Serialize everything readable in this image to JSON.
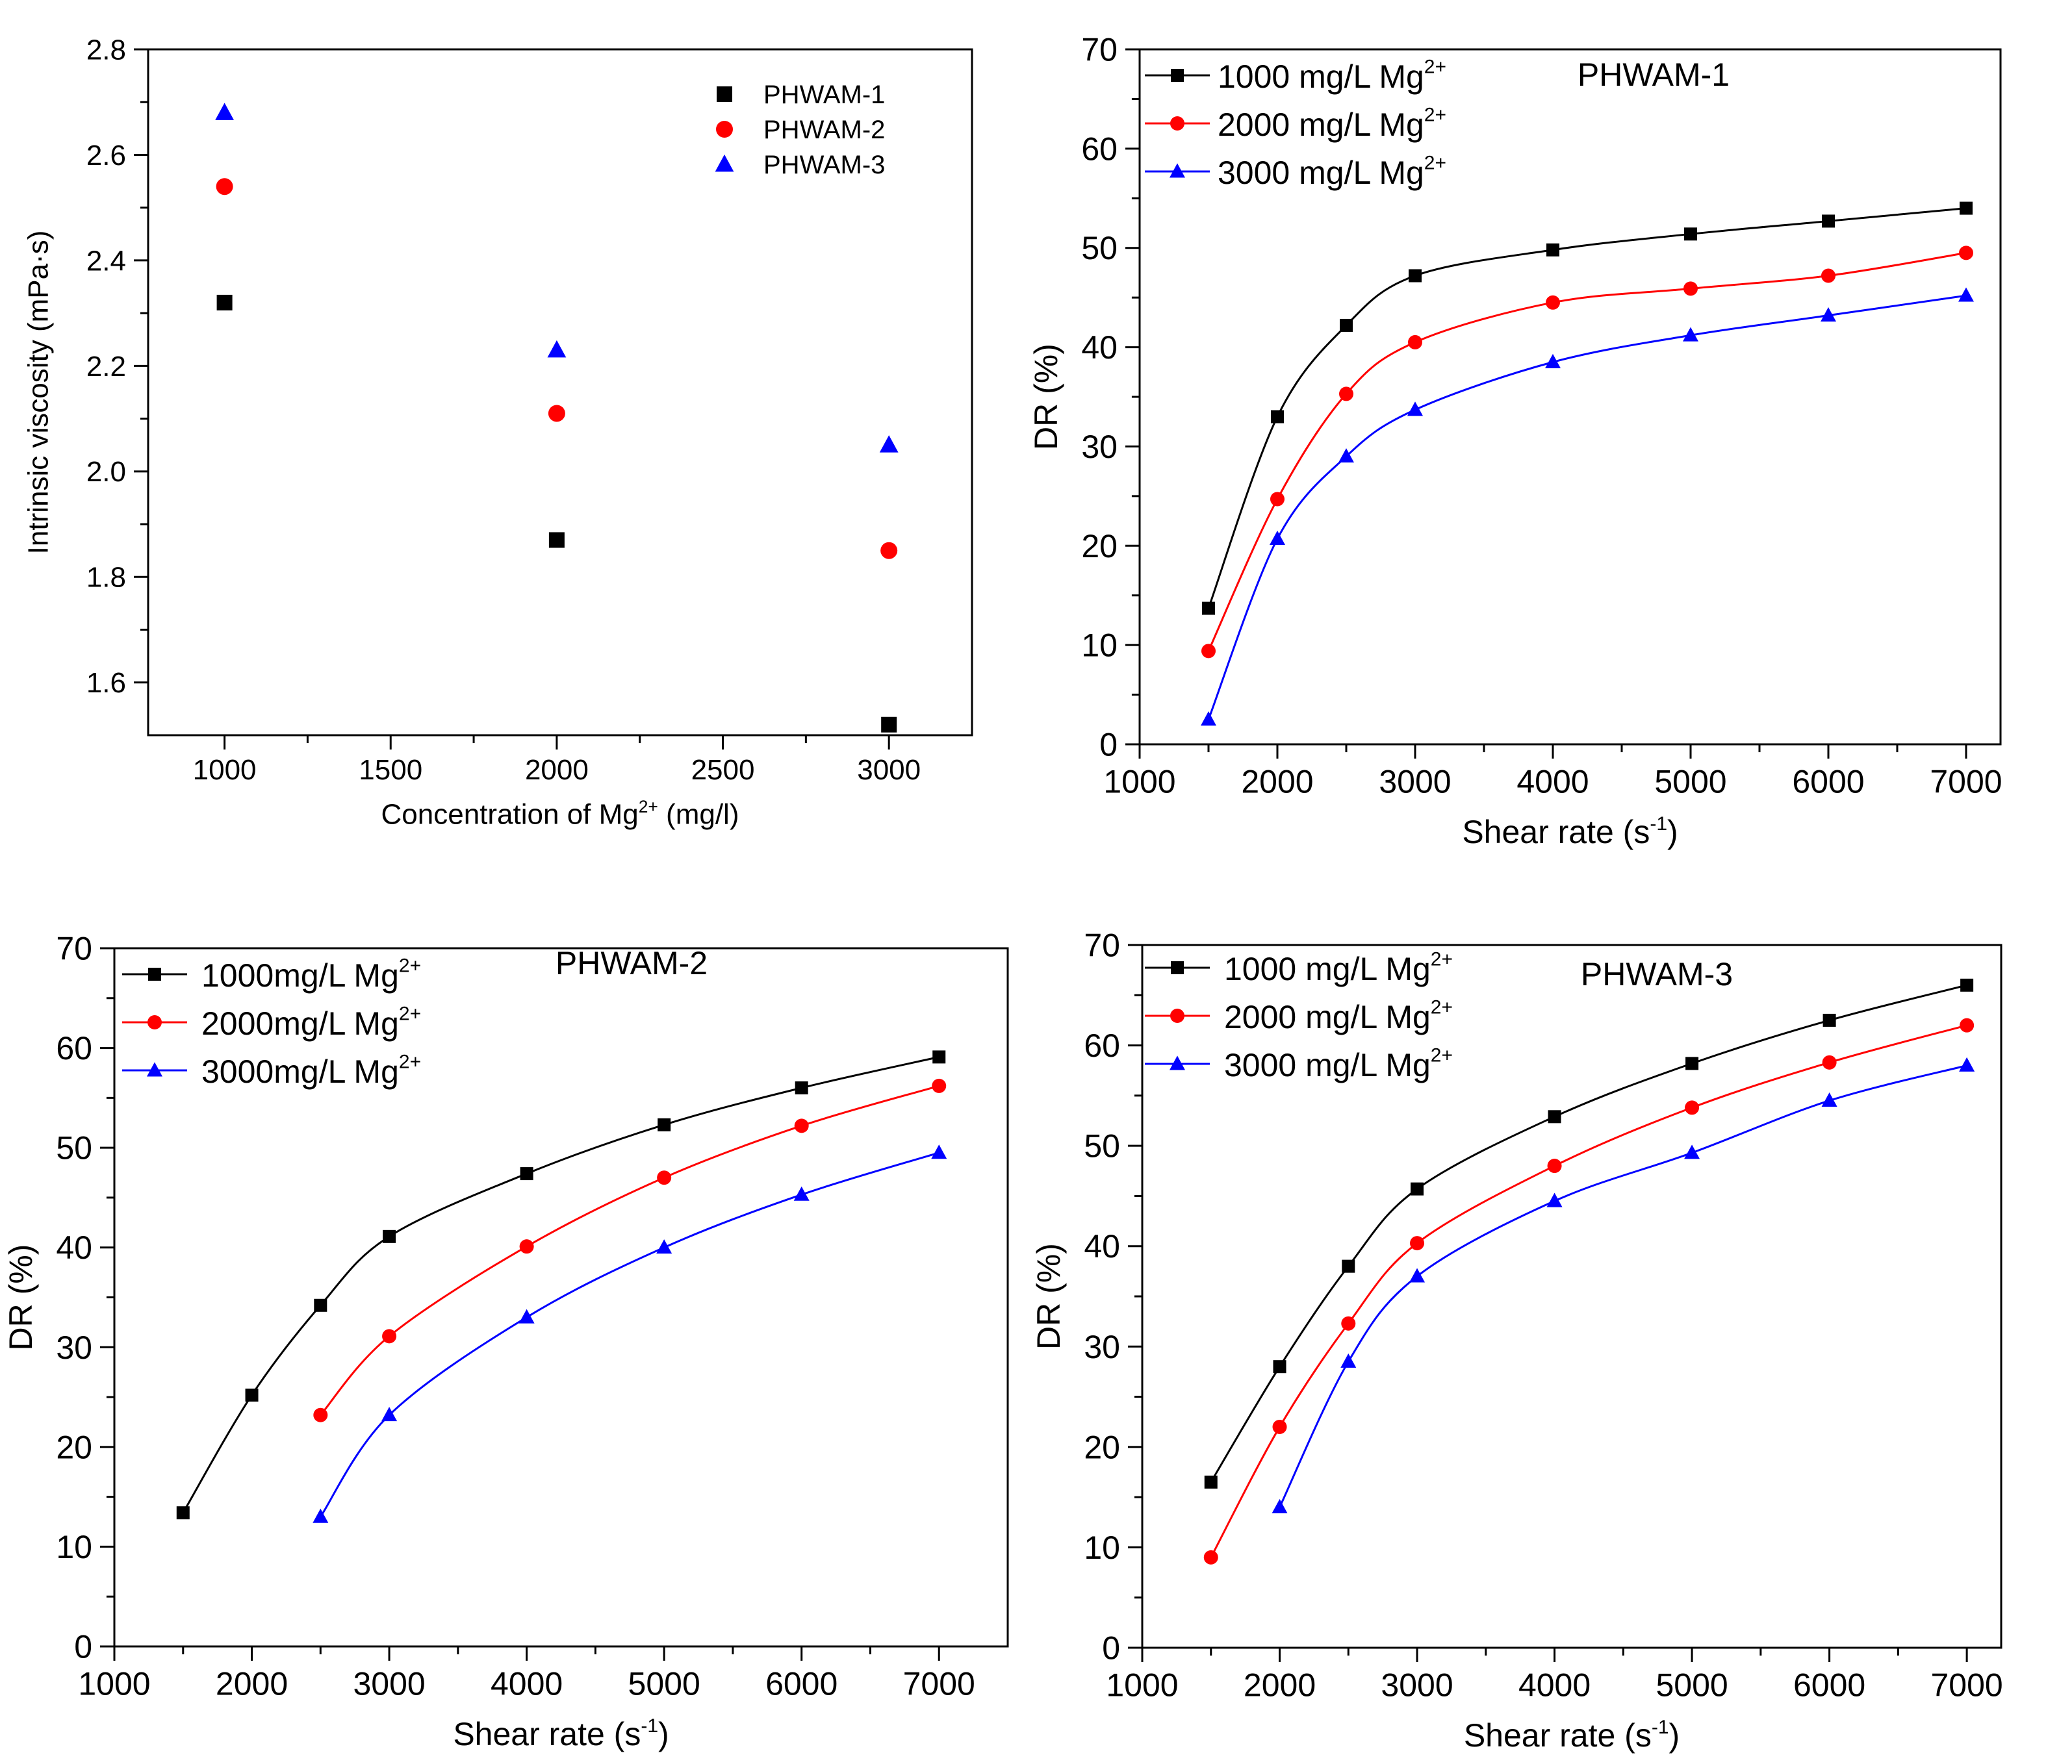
{
  "chart_data": [
    {
      "type": "scatter",
      "xlabel": "Concentration of Mg",
      "xlabel_sup": "2+",
      "xlabel_tail": " (mg/l)",
      "ylabel": "Intrinsic viscosity (mPa·s)",
      "xlim": [
        770,
        3250
      ],
      "ylim": [
        1.5,
        2.8
      ],
      "xticks": [
        1000,
        1500,
        2000,
        2500,
        3000
      ],
      "xtick_labels": [
        "1000",
        "1500",
        "2000",
        "2500",
        "3000"
      ],
      "yticks": [
        1.6,
        1.8,
        2.0,
        2.2,
        2.4,
        2.6,
        2.8
      ],
      "ytick_labels": [
        "1.6",
        "1.8",
        "2.0",
        "2.2",
        "2.4",
        "2.6",
        "2.8"
      ],
      "legend_position": "top-right",
      "series": [
        {
          "name": "PHWAM-1",
          "color": "#000000",
          "marker": "square",
          "x": [
            1000,
            2000,
            3000
          ],
          "y": [
            2.32,
            1.87,
            1.52
          ]
        },
        {
          "name": "PHWAM-2",
          "color": "#ff0000",
          "marker": "circle",
          "x": [
            1000,
            2000,
            3000
          ],
          "y": [
            2.54,
            2.11,
            1.85
          ]
        },
        {
          "name": "PHWAM-3",
          "color": "#0000ff",
          "marker": "triangle",
          "x": [
            1000,
            2000,
            3000
          ],
          "y": [
            2.68,
            2.23,
            2.05
          ]
        }
      ]
    },
    {
      "type": "line",
      "title": "PHWAM-1",
      "xlabel": "Shear rate (s",
      "xlabel_sup": "-1",
      "xlabel_tail": ")",
      "ylabel": "DR (%)",
      "xlim": [
        1000,
        7250
      ],
      "ylim": [
        0,
        70
      ],
      "xticks": [
        1000,
        2000,
        3000,
        4000,
        5000,
        6000,
        7000
      ],
      "xtick_labels": [
        "1000",
        "2000",
        "3000",
        "4000",
        "5000",
        "6000",
        "7000"
      ],
      "yticks": [
        0,
        10,
        20,
        30,
        40,
        50,
        60,
        70
      ],
      "ytick_labels": [
        "0",
        "10",
        "20",
        "30",
        "40",
        "50",
        "60",
        "70"
      ],
      "legend_position": "top-left",
      "series": [
        {
          "name": "1000 mg/L Mg",
          "name_sup": "2+",
          "color": "#000000",
          "marker": "square",
          "x": [
            1500,
            2000,
            2500,
            3000,
            4000,
            5000,
            6000,
            7000
          ],
          "y": [
            13.7,
            33.0,
            42.2,
            47.2,
            49.8,
            51.4,
            52.7,
            54.0
          ]
        },
        {
          "name": "2000 mg/L Mg",
          "name_sup": "2+",
          "color": "#ff0000",
          "marker": "circle",
          "x": [
            1500,
            2000,
            2500,
            3000,
            4000,
            5000,
            6000,
            7000
          ],
          "y": [
            9.4,
            24.7,
            35.3,
            40.5,
            44.5,
            45.9,
            47.2,
            49.5
          ]
        },
        {
          "name": "3000 mg/L Mg",
          "name_sup": "2+",
          "color": "#0000ff",
          "marker": "triangle",
          "x": [
            1500,
            2000,
            2500,
            3000,
            4000,
            5000,
            6000,
            7000
          ],
          "y": [
            2.5,
            20.7,
            29.0,
            33.7,
            38.5,
            41.2,
            43.2,
            45.2
          ]
        }
      ]
    },
    {
      "type": "line",
      "title": "PHWAM-2",
      "xlabel": "Shear rate (s",
      "xlabel_sup": "-1",
      "xlabel_tail": ")",
      "ylabel": "DR (%)",
      "xlim": [
        1000,
        7500
      ],
      "ylim": [
        0,
        70
      ],
      "xticks": [
        1000,
        2000,
        3000,
        4000,
        5000,
        6000,
        7000
      ],
      "xtick_labels": [
        "1000",
        "2000",
        "3000",
        "4000",
        "5000",
        "6000",
        "7000"
      ],
      "yticks": [
        0,
        10,
        20,
        30,
        40,
        50,
        60,
        70
      ],
      "ytick_labels": [
        "0",
        "10",
        "20",
        "30",
        "40",
        "50",
        "60",
        "70"
      ],
      "legend_position": "top-left",
      "series": [
        {
          "name": "1000mg/L Mg",
          "name_sup": "2+",
          "color": "#000000",
          "marker": "square",
          "x": [
            1500,
            2000,
            2500,
            3000,
            4000,
            5000,
            6000,
            7000
          ],
          "y": [
            13.4,
            25.2,
            34.2,
            41.1,
            47.4,
            52.3,
            56.0,
            59.1
          ]
        },
        {
          "name": "2000mg/L Mg",
          "name_sup": "2+",
          "color": "#ff0000",
          "marker": "circle",
          "x": [
            2500,
            3000,
            4000,
            5000,
            6000,
            7000
          ],
          "y": [
            23.2,
            31.1,
            40.1,
            47.0,
            52.2,
            56.2
          ]
        },
        {
          "name": "3000mg/L Mg",
          "name_sup": "2+",
          "color": "#0000ff",
          "marker": "triangle",
          "x": [
            2500,
            3000,
            4000,
            5000,
            6000,
            7000
          ],
          "y": [
            13.0,
            23.2,
            33.0,
            40.0,
            45.3,
            49.5
          ]
        }
      ]
    },
    {
      "type": "line",
      "title": "PHWAM-3",
      "xlabel": "Shear rate (s",
      "xlabel_sup": "-1",
      "xlabel_tail": ")",
      "ylabel": "DR (%)",
      "xlim": [
        1000,
        7250
      ],
      "ylim": [
        0,
        70
      ],
      "xticks": [
        1000,
        2000,
        3000,
        4000,
        5000,
        6000,
        7000
      ],
      "xtick_labels": [
        "1000",
        "2000",
        "3000",
        "4000",
        "5000",
        "6000",
        "7000"
      ],
      "yticks": [
        0,
        10,
        20,
        30,
        40,
        50,
        60,
        70
      ],
      "ytick_labels": [
        "0",
        "10",
        "20",
        "30",
        "40",
        "50",
        "60",
        "70"
      ],
      "legend_position": "top-left",
      "series": [
        {
          "name": "1000 mg/L Mg",
          "name_sup": "2+",
          "color": "#000000",
          "marker": "square",
          "x": [
            1500,
            2000,
            2500,
            3000,
            4000,
            5000,
            6000,
            7000
          ],
          "y": [
            16.5,
            28.0,
            38.0,
            45.7,
            52.9,
            58.2,
            62.5,
            66.0
          ]
        },
        {
          "name": "2000 mg/L Mg",
          "name_sup": "2+",
          "color": "#ff0000",
          "marker": "circle",
          "x": [
            1500,
            2000,
            2500,
            3000,
            4000,
            5000,
            6000,
            7000
          ],
          "y": [
            9.0,
            22.0,
            32.3,
            40.3,
            48.0,
            53.8,
            58.3,
            62.0
          ]
        },
        {
          "name": "3000 mg/L Mg",
          "name_sup": "2+",
          "color": "#0000ff",
          "marker": "triangle",
          "x": [
            2000,
            2500,
            3000,
            4000,
            5000,
            6000,
            7000
          ],
          "y": [
            14.0,
            28.5,
            37.0,
            44.5,
            49.3,
            54.5,
            58.0
          ]
        }
      ]
    }
  ]
}
